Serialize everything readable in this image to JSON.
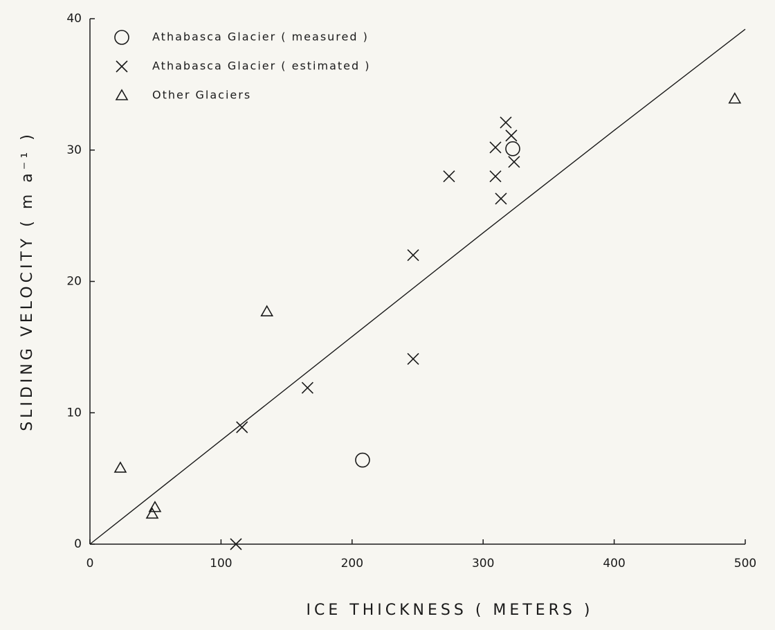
{
  "chart_data": {
    "type": "scatter",
    "x_label": "ICE THICKNESS ( METERS )",
    "y_label": "SLIDING VELOCITY ( m a⁻¹ )",
    "xlim": [
      0,
      500
    ],
    "ylim": [
      0,
      40
    ],
    "xticks": [
      0,
      100,
      200,
      300,
      400,
      500
    ],
    "yticks": [
      0,
      10,
      20,
      30,
      40
    ],
    "legend": "upper left",
    "series": [
      {
        "name": "Athabasca Glacier ( measured )",
        "marker": "circle",
        "color": "#1a1a1a",
        "x": [
          208,
          322.6
        ],
        "values": [
          6.4,
          30.1
        ]
      },
      {
        "name": "Athabasca Glacier ( estimated )",
        "marker": "cross",
        "color": "#1a1a1a",
        "x": [
          111.4,
          116,
          166,
          246.6,
          246.6,
          274,
          309.4,
          309.4,
          313.6,
          317.3,
          321.5,
          323.6
        ],
        "values": [
          0,
          8.9,
          11.9,
          14.1,
          22.0,
          28.0,
          30.2,
          28.0,
          26.3,
          32.1,
          31.1,
          29.1
        ]
      },
      {
        "name": "Other Glaciers",
        "marker": "triangle",
        "color": "#1a1a1a",
        "x": [
          23.2,
          49.6,
          47.5,
          135,
          492
        ],
        "values": [
          5.8,
          2.8,
          2.3,
          17.7,
          33.9
        ]
      }
    ],
    "fit_line": {
      "color": "#1a1a1a",
      "x": [
        0,
        100,
        200,
        300,
        400,
        500
      ],
      "values": [
        0,
        7.9,
        15.8,
        23.7,
        31.5,
        39.2
      ]
    }
  }
}
